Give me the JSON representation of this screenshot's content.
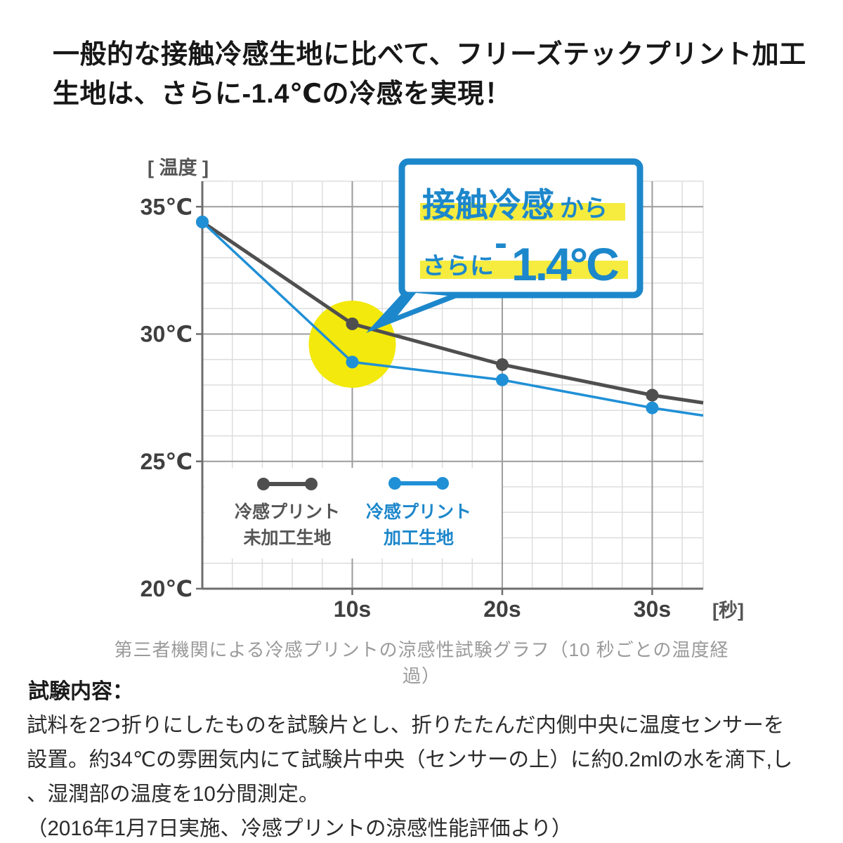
{
  "headline": {
    "line1": "一般的な接触冷感生地に比べて、フリーズテックプリント加工",
    "line2": "生地は、さらに-1.4℃の冷感を実現！"
  },
  "colors": {
    "blue_series": "#2090d6",
    "blue_accent": "#1d87cb",
    "dark_series": "#4f4f4f",
    "circle_yellow": "#f3e90c",
    "highlight_yellow": "#f5ec3f",
    "grid_minor": "#dddddd",
    "grid_major": "#9c9c9c",
    "axis": "#6e6e6e"
  },
  "bubble": {
    "line1_highlight": "接触冷感",
    "line1_suffix": "から",
    "line2_prefix": "さらに",
    "minus": "-",
    "value": "1.4°C"
  },
  "chart_data": {
    "type": "line",
    "title": "",
    "xlabel_unit": "[秒]",
    "ylabel_unit": "[ 温度 ]",
    "x": [
      0,
      10,
      20,
      30
    ],
    "x_end": 33.4,
    "ylim": [
      20,
      36
    ],
    "grid": "on",
    "x_major_ticks": [
      {
        "label": "10s",
        "value": 10
      },
      {
        "label": "20s",
        "value": 20
      },
      {
        "label": "30s",
        "value": 30
      }
    ],
    "y_major_ticks": [
      {
        "label": "35℃",
        "value": 35
      },
      {
        "label": "30℃",
        "value": 30
      },
      {
        "label": "25℃",
        "value": 25
      },
      {
        "label": "20℃",
        "value": 20
      }
    ],
    "series": [
      {
        "name": "冷感プリント未加工生地",
        "label_lines": [
          "冷感プリント",
          "未加工生地"
        ],
        "color": "#4f4f4f",
        "values": [
          34.4,
          30.4,
          28.8,
          27.6
        ],
        "end_value": 27.3
      },
      {
        "name": "冷感プリント加工生地",
        "label_lines": [
          "冷感プリント",
          "加工生地"
        ],
        "color": "#2090d6",
        "values": [
          34.4,
          28.9,
          28.2,
          27.1
        ],
        "end_value": 26.8
      }
    ],
    "highlight": {
      "x": 10,
      "y": 29.6
    },
    "annotation_delta": "-1.4°C",
    "legend_position": "inside-bottom-left",
    "caption": "第三者機関による冷感プリントの涼感性試験グラフ（10 秒ごとの温度経過）"
  },
  "test_section": {
    "label": "試験内容：",
    "line1": "試料を2つ折りにしたものを試験片とし、折りたたんだ内側中央に温度センサーを",
    "line2": "設置。約34℃の雰囲気内にて試験片中央（センサーの上）に約0.2mlの水を滴下,し",
    "line3": "、湿潤部の温度を10分間測定。",
    "line4": "（2016年1月7日実施、冷感プリントの涼感性能評価より）"
  }
}
